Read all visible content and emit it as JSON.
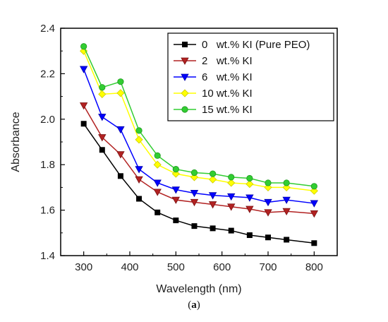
{
  "caption": {
    "open": "(",
    "letter": "a",
    "close": ")"
  },
  "chart_data": {
    "type": "line",
    "title": "",
    "xlabel": "Wavelength (nm)",
    "ylabel": "Absorbance",
    "xlim": [
      250,
      850
    ],
    "ylim": [
      1.4,
      2.4
    ],
    "xticks": [
      300,
      400,
      500,
      600,
      700,
      800
    ],
    "yticks": [
      1.4,
      1.6,
      1.8,
      2.0,
      2.2,
      2.4
    ],
    "ytick_labels": [
      "1.4",
      "1.6",
      "1.8",
      "2.0",
      "2.2",
      "2.4"
    ],
    "grid": false,
    "legend_position": "top-right",
    "x": [
      300,
      340,
      380,
      420,
      460,
      500,
      540,
      580,
      620,
      660,
      700,
      740,
      800
    ],
    "series": [
      {
        "name": "0   wt.% KI (Pure PEO)",
        "color": "#000000",
        "marker": "square",
        "values": [
          1.98,
          1.865,
          1.75,
          1.65,
          1.59,
          1.555,
          1.53,
          1.52,
          1.51,
          1.49,
          1.48,
          1.47,
          1.455
        ]
      },
      {
        "name": "2   wt.% KI",
        "color": "#b22222",
        "marker": "triangle-down",
        "values": [
          2.06,
          1.92,
          1.845,
          1.735,
          1.68,
          1.645,
          1.635,
          1.625,
          1.615,
          1.605,
          1.59,
          1.595,
          1.585
        ]
      },
      {
        "name": "6   wt.% KI",
        "color": "#0000ff",
        "marker": "triangle-down",
        "values": [
          2.22,
          2.01,
          1.955,
          1.78,
          1.72,
          1.69,
          1.675,
          1.665,
          1.66,
          1.655,
          1.635,
          1.645,
          1.63
        ]
      },
      {
        "name": "10 wt.% KI",
        "color": "#ffff00",
        "marker": "diamond",
        "values": [
          2.3,
          2.11,
          2.115,
          1.91,
          1.8,
          1.76,
          1.745,
          1.735,
          1.72,
          1.715,
          1.7,
          1.7,
          1.685
        ]
      },
      {
        "name": "15 wt.% KI",
        "color": "#32cd32",
        "marker": "circle",
        "values": [
          2.32,
          2.14,
          2.165,
          1.95,
          1.84,
          1.78,
          1.765,
          1.76,
          1.745,
          1.74,
          1.72,
          1.72,
          1.705
        ]
      }
    ]
  }
}
